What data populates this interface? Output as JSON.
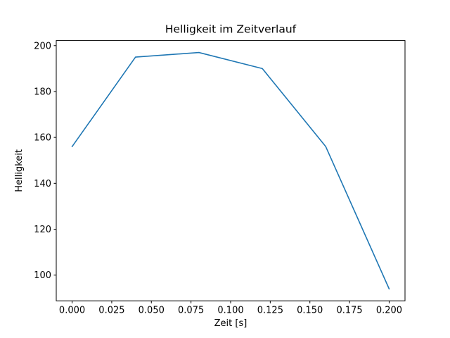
{
  "chart": {
    "background": "#ffffff",
    "line_color": "#1f77b4",
    "axis_color": "#000000"
  },
  "chart_data": {
    "type": "line",
    "title": "Helligkeit im Zeitverlauf",
    "xlabel": "Zeit [s]",
    "ylabel": "Helligkeit",
    "x": [
      0.0,
      0.04,
      0.08,
      0.12,
      0.16,
      0.2
    ],
    "y": [
      156,
      195,
      197,
      190,
      156,
      94
    ],
    "xlim": [
      -0.01,
      0.21
    ],
    "ylim": [
      88.8,
      202.2
    ],
    "xticks": [
      0.0,
      0.025,
      0.05,
      0.075,
      0.1,
      0.125,
      0.15,
      0.175,
      0.2
    ],
    "xtick_labels": [
      "0.000",
      "0.025",
      "0.050",
      "0.075",
      "0.100",
      "0.125",
      "0.150",
      "0.175",
      "0.200"
    ],
    "yticks": [
      100,
      120,
      140,
      160,
      180,
      200
    ],
    "ytick_labels": [
      "100",
      "120",
      "140",
      "160",
      "180",
      "200"
    ],
    "grid": false,
    "legend": null
  }
}
